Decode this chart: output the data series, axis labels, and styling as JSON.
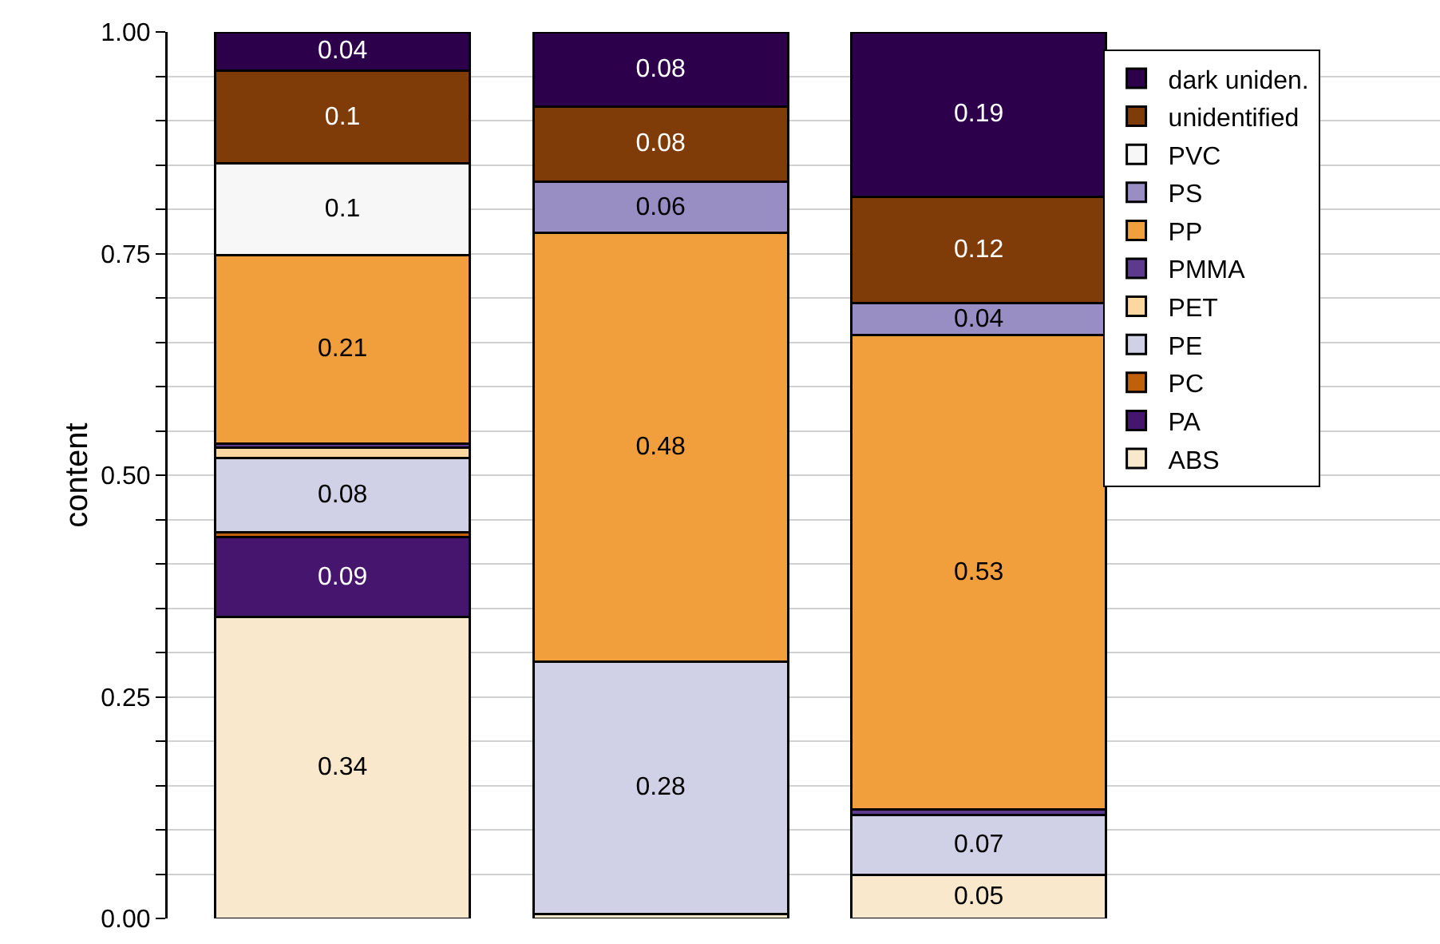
{
  "chart_data": {
    "type": "bar",
    "stacked": true,
    "ylabel": "content",
    "categories": [
      null,
      null,
      null
    ],
    "ylim": [
      0,
      1
    ],
    "yticks": [
      {
        "value": 0,
        "label": "0.00"
      },
      {
        "value": 0.05,
        "label": null
      },
      {
        "value": 0.1,
        "label": null
      },
      {
        "value": 0.15,
        "label": null
      },
      {
        "value": 0.2,
        "label": null
      },
      {
        "value": 0.25,
        "label": "0.25"
      },
      {
        "value": 0.3,
        "label": null
      },
      {
        "value": 0.35,
        "label": null
      },
      {
        "value": 0.4,
        "label": null
      },
      {
        "value": 0.45,
        "label": null
      },
      {
        "value": 0.5,
        "label": "0.50"
      },
      {
        "value": 0.55,
        "label": null
      },
      {
        "value": 0.6,
        "label": null
      },
      {
        "value": 0.65,
        "label": null
      },
      {
        "value": 0.7,
        "label": null
      },
      {
        "value": 0.75,
        "label": "0.75"
      },
      {
        "value": 0.8,
        "label": null
      },
      {
        "value": 0.85,
        "label": null
      },
      {
        "value": 0.9,
        "label": null
      },
      {
        "value": 0.95,
        "label": null
      },
      {
        "value": 1,
        "label": "1.00"
      }
    ],
    "grid": "y",
    "legend": "top right",
    "tick_labels": "y",
    "series": [
      {
        "name": "ABS",
        "color": "#fae8cd",
        "values": [
          0.34,
          0.005,
          0.049
        ],
        "value_labels": [
          "0.34",
          null,
          "0.05"
        ]
      },
      {
        "name": "PA",
        "color": "#46166e",
        "values": [
          0.09,
          0,
          0
        ],
        "value_labels": [
          "0.09",
          null,
          null
        ]
      },
      {
        "name": "PC",
        "color": "#c0600a",
        "values": [
          0.006,
          0,
          0
        ],
        "value_labels": [
          null,
          null,
          null
        ]
      },
      {
        "name": "PE",
        "color": "#d0d0e6",
        "values": [
          0.083,
          0.285,
          0.068
        ],
        "value_labels": [
          "0.08",
          "0.28",
          "0.07"
        ]
      },
      {
        "name": "PET",
        "color": "#fdd7a0",
        "values": [
          0.012,
          0,
          0
        ],
        "value_labels": [
          null,
          null,
          null
        ]
      },
      {
        "name": "PMMA",
        "color": "#5e3a8f",
        "values": [
          0.005,
          0,
          0.006
        ],
        "value_labels": [
          null,
          null,
          null
        ]
      },
      {
        "name": "PP",
        "color": "#f09f3c",
        "values": [
          0.212,
          0.483,
          0.535
        ],
        "value_labels": [
          "0.21",
          "0.48",
          "0.53"
        ]
      },
      {
        "name": "PS",
        "color": "#998ec3",
        "values": [
          0,
          0.058,
          0.036
        ],
        "value_labels": [
          null,
          "0.06",
          "0.04"
        ]
      },
      {
        "name": "PVC",
        "color": "#f7f7f7",
        "values": [
          0.104,
          0,
          0
        ],
        "value_labels": [
          "0.1",
          null,
          null
        ]
      },
      {
        "name": "unidentified",
        "color": "#7f3b08",
        "values": [
          0.104,
          0.085,
          0.12
        ],
        "value_labels": [
          "0.1",
          "0.08",
          "0.12"
        ]
      },
      {
        "name": "dark uniden.",
        "color": "#2d004b",
        "values": [
          0.044,
          0.084,
          0.186
        ],
        "value_labels": [
          "0.04",
          "0.08",
          "0.19"
        ]
      }
    ]
  }
}
